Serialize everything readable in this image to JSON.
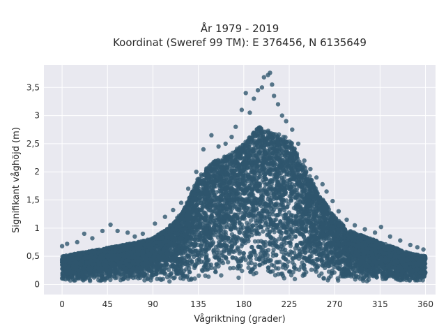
{
  "chart_data": {
    "type": "scatter",
    "title_line1": "År 1979 - 2019",
    "title_line2": "Koordinat (Sweref 99 TM): E 376456, N 6135649",
    "xlabel": "Vågriktning (grader)",
    "ylabel": "Signifikant våghöjd (m)",
    "xlim": [
      -18,
      370
    ],
    "ylim": [
      -0.18,
      3.9
    ],
    "x_ticks": [
      0,
      45,
      90,
      135,
      180,
      225,
      270,
      315,
      360
    ],
    "x_tick_labels": [
      "0",
      "45",
      "90",
      "135",
      "180",
      "225",
      "270",
      "315",
      "360"
    ],
    "y_ticks": [
      0,
      0.5,
      1,
      1.5,
      2,
      2.5,
      3,
      3.5
    ],
    "y_tick_labels": [
      "0",
      "0,5",
      "1",
      "1,5",
      "2",
      "2,5",
      "3",
      "3,5"
    ],
    "grid": true,
    "point_color": "#2f566e",
    "background_color": "#e9e9f0",
    "envelope": {
      "direction": [
        0,
        15,
        30,
        45,
        60,
        75,
        90,
        105,
        120,
        135,
        150,
        165,
        180,
        195,
        210,
        225,
        240,
        255,
        270,
        285,
        300,
        315,
        330,
        345,
        360
      ],
      "upper_hs": [
        0.5,
        0.55,
        0.6,
        0.65,
        0.7,
        0.75,
        0.82,
        1.0,
        1.3,
        1.9,
        2.2,
        2.3,
        2.5,
        2.8,
        2.7,
        2.6,
        2.1,
        1.6,
        1.2,
        0.95,
        0.85,
        0.75,
        0.65,
        0.55,
        0.5
      ],
      "lower_hs": 0.05
    },
    "outliers": [
      {
        "x": 0,
        "y": 0.68
      },
      {
        "x": 5,
        "y": 0.72
      },
      {
        "x": 15,
        "y": 0.75
      },
      {
        "x": 22,
        "y": 0.9
      },
      {
        "x": 30,
        "y": 0.82
      },
      {
        "x": 40,
        "y": 0.95
      },
      {
        "x": 48,
        "y": 1.06
      },
      {
        "x": 55,
        "y": 0.95
      },
      {
        "x": 65,
        "y": 0.92
      },
      {
        "x": 72,
        "y": 0.85
      },
      {
        "x": 80,
        "y": 0.9
      },
      {
        "x": 92,
        "y": 1.08
      },
      {
        "x": 102,
        "y": 1.2
      },
      {
        "x": 110,
        "y": 1.32
      },
      {
        "x": 118,
        "y": 1.45
      },
      {
        "x": 125,
        "y": 1.7
      },
      {
        "x": 133,
        "y": 2.0
      },
      {
        "x": 140,
        "y": 2.4
      },
      {
        "x": 148,
        "y": 2.65
      },
      {
        "x": 155,
        "y": 2.45
      },
      {
        "x": 162,
        "y": 2.5
      },
      {
        "x": 168,
        "y": 2.62
      },
      {
        "x": 172,
        "y": 2.8
      },
      {
        "x": 178,
        "y": 3.1
      },
      {
        "x": 182,
        "y": 3.4
      },
      {
        "x": 186,
        "y": 3.05
      },
      {
        "x": 190,
        "y": 3.3
      },
      {
        "x": 194,
        "y": 3.45
      },
      {
        "x": 198,
        "y": 3.5
      },
      {
        "x": 200,
        "y": 3.68
      },
      {
        "x": 204,
        "y": 3.72
      },
      {
        "x": 206,
        "y": 3.76
      },
      {
        "x": 208,
        "y": 3.55
      },
      {
        "x": 210,
        "y": 3.35
      },
      {
        "x": 214,
        "y": 3.2
      },
      {
        "x": 218,
        "y": 3.0
      },
      {
        "x": 222,
        "y": 2.9
      },
      {
        "x": 228,
        "y": 2.75
      },
      {
        "x": 234,
        "y": 2.5
      },
      {
        "x": 240,
        "y": 2.2
      },
      {
        "x": 246,
        "y": 2.05
      },
      {
        "x": 252,
        "y": 1.9
      },
      {
        "x": 258,
        "y": 1.78
      },
      {
        "x": 262,
        "y": 1.65
      },
      {
        "x": 268,
        "y": 1.48
      },
      {
        "x": 274,
        "y": 1.3
      },
      {
        "x": 282,
        "y": 1.15
      },
      {
        "x": 290,
        "y": 1.05
      },
      {
        "x": 300,
        "y": 0.98
      },
      {
        "x": 310,
        "y": 0.92
      },
      {
        "x": 316,
        "y": 1.02
      },
      {
        "x": 325,
        "y": 0.85
      },
      {
        "x": 335,
        "y": 0.78
      },
      {
        "x": 345,
        "y": 0.7
      },
      {
        "x": 352,
        "y": 0.66
      },
      {
        "x": 358,
        "y": 0.62
      }
    ]
  }
}
